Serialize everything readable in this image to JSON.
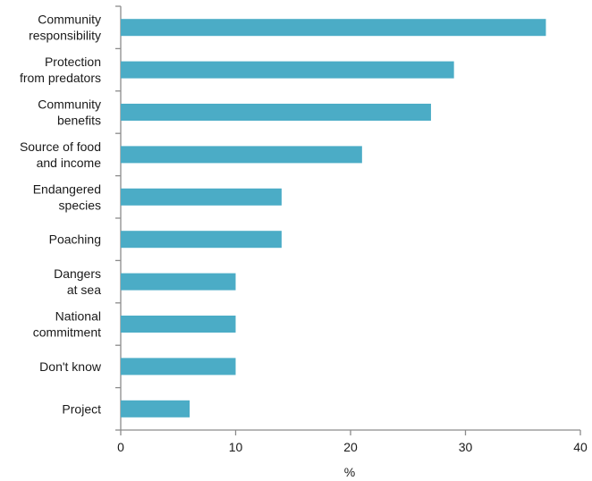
{
  "chart_data": {
    "type": "bar",
    "orientation": "horizontal",
    "categories": [
      [
        "Community",
        "responsibility"
      ],
      [
        "Protection",
        "from predators"
      ],
      [
        "Community",
        "benefits"
      ],
      [
        "Source of food",
        "and income"
      ],
      [
        "Endangered",
        "species"
      ],
      [
        "Poaching"
      ],
      [
        "Dangers",
        "at sea"
      ],
      [
        "National",
        "commitment"
      ],
      [
        "Don't know"
      ],
      [
        "Project"
      ]
    ],
    "values": [
      37,
      29,
      27,
      21,
      14,
      14,
      10,
      10,
      10,
      6
    ],
    "xlabel": "%",
    "xlim": [
      0,
      40
    ],
    "xticks": [
      0,
      10,
      20,
      30,
      40
    ],
    "bar_color": "#4bacc6",
    "axis_color": "#8c8c8c",
    "grid": false
  }
}
